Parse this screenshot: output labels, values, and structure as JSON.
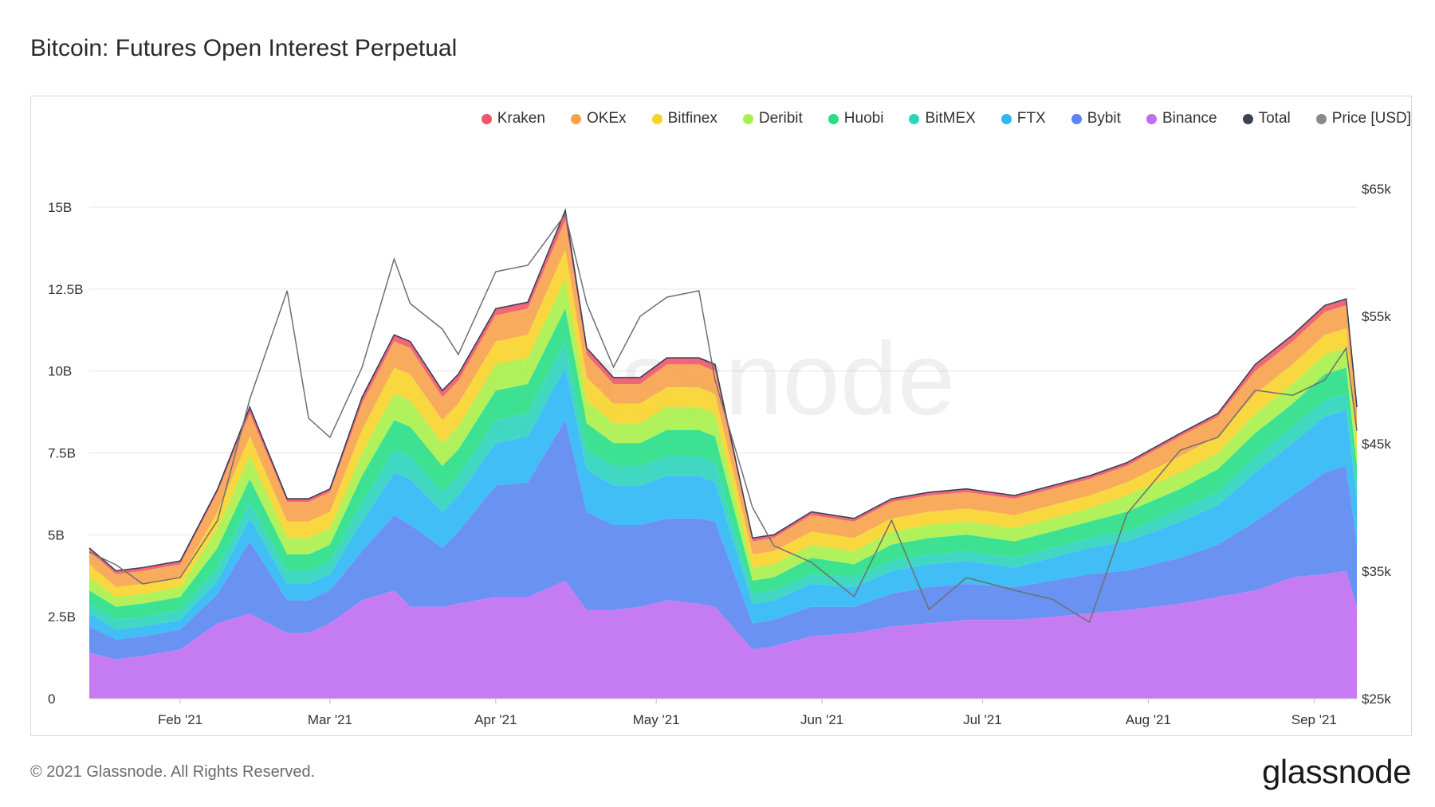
{
  "page": {
    "title": "Bitcoin: Futures Open Interest Perpetual",
    "copyright": "© 2021 Glassnode. All Rights Reserved.",
    "brand": "glassnode",
    "watermark": "glassnode"
  },
  "legend": [
    {
      "label": "Kraken",
      "color": "#f0566a"
    },
    {
      "label": "OKEx",
      "color": "#f7a24b"
    },
    {
      "label": "Bitfinex",
      "color": "#f7d32a"
    },
    {
      "label": "Deribit",
      "color": "#a7ef4a"
    },
    {
      "label": "Huobi",
      "color": "#27de86"
    },
    {
      "label": "BitMEX",
      "color": "#2bd4bd"
    },
    {
      "label": "FTX",
      "color": "#2cb7f5"
    },
    {
      "label": "Bybit",
      "color": "#5a86f2"
    },
    {
      "label": "Binance",
      "color": "#bf6ef2"
    },
    {
      "label": "Total",
      "color": "#3b4252"
    },
    {
      "label": "Price [USD]",
      "color": "#8a8a8a"
    }
  ],
  "chart_data": {
    "type": "area",
    "stacked": true,
    "title": "Bitcoin: Futures Open Interest Perpetual",
    "x_tick_labels": [
      "Feb '21",
      "Mar '21",
      "Apr '21",
      "May '21",
      "Jun '21",
      "Jul '21",
      "Aug '21",
      "Sep '21"
    ],
    "y_left_tick_labels": [
      "0",
      "2.5B",
      "5B",
      "7.5B",
      "10B",
      "12.5B",
      "15B"
    ],
    "y_left_range": [
      0,
      15.5
    ],
    "y_left_unit": "B USD",
    "y_right_tick_labels": [
      "$25k",
      "$35k",
      "$45k",
      "$55k",
      "$65k"
    ],
    "y_right_range": [
      25000,
      65000
    ],
    "grid": "horizontal",
    "legend_position": "top-right",
    "x": [
      "2021-01-15",
      "2021-01-20",
      "2021-01-25",
      "2021-02-01",
      "2021-02-08",
      "2021-02-14",
      "2021-02-21",
      "2021-02-25",
      "2021-03-01",
      "2021-03-07",
      "2021-03-13",
      "2021-03-16",
      "2021-03-22",
      "2021-03-25",
      "2021-04-01",
      "2021-04-07",
      "2021-04-14",
      "2021-04-18",
      "2021-04-23",
      "2021-04-28",
      "2021-05-03",
      "2021-05-09",
      "2021-05-12",
      "2021-05-19",
      "2021-05-23",
      "2021-05-30",
      "2021-06-07",
      "2021-06-14",
      "2021-06-21",
      "2021-06-28",
      "2021-07-07",
      "2021-07-14",
      "2021-07-21",
      "2021-07-28",
      "2021-08-07",
      "2021-08-14",
      "2021-08-21",
      "2021-08-28",
      "2021-09-03",
      "2021-09-07",
      "2021-09-09"
    ],
    "series": [
      {
        "name": "Binance",
        "values": [
          1.4,
          1.2,
          1.3,
          1.5,
          2.3,
          2.6,
          2.0,
          2.0,
          2.3,
          3.0,
          3.3,
          2.8,
          2.8,
          2.9,
          3.1,
          3.1,
          3.6,
          2.7,
          2.7,
          2.8,
          3.0,
          2.9,
          2.8,
          1.5,
          1.6,
          1.9,
          2.0,
          2.2,
          2.3,
          2.4,
          2.4,
          2.5,
          2.6,
          2.7,
          2.9,
          3.1,
          3.3,
          3.7,
          3.8,
          3.9,
          2.8
        ]
      },
      {
        "name": "Bybit",
        "values": [
          0.8,
          0.6,
          0.6,
          0.6,
          0.9,
          2.2,
          1.0,
          1.0,
          1.0,
          1.5,
          2.3,
          2.5,
          1.8,
          2.2,
          3.4,
          3.5,
          4.9,
          3.0,
          2.6,
          2.5,
          2.5,
          2.6,
          2.6,
          0.8,
          0.8,
          0.9,
          0.8,
          1.0,
          1.1,
          1.1,
          1.0,
          1.1,
          1.2,
          1.2,
          1.4,
          1.6,
          2.1,
          2.5,
          3.1,
          3.2,
          1.9
        ]
      },
      {
        "name": "FTX",
        "values": [
          0.4,
          0.3,
          0.3,
          0.3,
          0.4,
          0.7,
          0.5,
          0.5,
          0.5,
          0.9,
          1.3,
          1.4,
          1.1,
          1.1,
          1.3,
          1.4,
          1.6,
          1.3,
          1.2,
          1.2,
          1.3,
          1.3,
          1.2,
          0.6,
          0.6,
          0.7,
          0.6,
          0.7,
          0.7,
          0.7,
          0.6,
          0.7,
          0.8,
          0.9,
          1.1,
          1.2,
          1.5,
          1.6,
          1.7,
          1.7,
          1.4
        ]
      },
      {
        "name": "BitMEX",
        "values": [
          0.3,
          0.3,
          0.3,
          0.3,
          0.4,
          0.5,
          0.4,
          0.4,
          0.4,
          0.6,
          0.7,
          0.7,
          0.6,
          0.6,
          0.7,
          0.7,
          0.8,
          0.6,
          0.6,
          0.6,
          0.6,
          0.6,
          0.6,
          0.3,
          0.3,
          0.3,
          0.3,
          0.3,
          0.3,
          0.3,
          0.3,
          0.3,
          0.3,
          0.3,
          0.4,
          0.4,
          0.5,
          0.5,
          0.5,
          0.5,
          0.4
        ]
      },
      {
        "name": "Huobi",
        "values": [
          0.4,
          0.4,
          0.4,
          0.4,
          0.6,
          0.7,
          0.5,
          0.5,
          0.5,
          0.8,
          0.9,
          0.9,
          0.8,
          0.8,
          0.9,
          0.9,
          1.0,
          0.8,
          0.7,
          0.7,
          0.8,
          0.8,
          0.8,
          0.4,
          0.4,
          0.5,
          0.4,
          0.5,
          0.5,
          0.5,
          0.5,
          0.5,
          0.5,
          0.6,
          0.6,
          0.7,
          0.7,
          0.7,
          0.8,
          0.8,
          0.6
        ]
      },
      {
        "name": "Deribit",
        "values": [
          0.4,
          0.3,
          0.3,
          0.3,
          0.6,
          0.7,
          0.5,
          0.5,
          0.5,
          0.7,
          0.8,
          0.8,
          0.7,
          0.7,
          0.8,
          0.8,
          0.9,
          0.7,
          0.6,
          0.6,
          0.7,
          0.7,
          0.7,
          0.4,
          0.4,
          0.4,
          0.4,
          0.4,
          0.4,
          0.4,
          0.4,
          0.4,
          0.4,
          0.5,
          0.5,
          0.5,
          0.6,
          0.6,
          0.6,
          0.6,
          0.5
        ]
      },
      {
        "name": "Bitfinex",
        "values": [
          0.4,
          0.3,
          0.3,
          0.3,
          0.5,
          0.6,
          0.5,
          0.5,
          0.5,
          0.7,
          0.8,
          0.8,
          0.7,
          0.7,
          0.7,
          0.7,
          0.9,
          0.7,
          0.6,
          0.6,
          0.6,
          0.6,
          0.6,
          0.4,
          0.4,
          0.4,
          0.4,
          0.4,
          0.4,
          0.4,
          0.4,
          0.4,
          0.4,
          0.4,
          0.5,
          0.5,
          0.6,
          0.6,
          0.6,
          0.6,
          0.5
        ]
      },
      {
        "name": "OKEx",
        "values": [
          0.4,
          0.4,
          0.4,
          0.4,
          0.6,
          0.7,
          0.6,
          0.6,
          0.6,
          0.8,
          0.8,
          0.8,
          0.7,
          0.7,
          0.8,
          0.8,
          0.9,
          0.7,
          0.6,
          0.6,
          0.7,
          0.7,
          0.7,
          0.4,
          0.4,
          0.5,
          0.5,
          0.5,
          0.5,
          0.5,
          0.5,
          0.5,
          0.5,
          0.5,
          0.6,
          0.6,
          0.7,
          0.7,
          0.7,
          0.7,
          0.6
        ]
      },
      {
        "name": "Kraken",
        "values": [
          0.1,
          0.1,
          0.1,
          0.1,
          0.1,
          0.2,
          0.1,
          0.1,
          0.1,
          0.2,
          0.2,
          0.2,
          0.2,
          0.2,
          0.2,
          0.2,
          0.3,
          0.2,
          0.2,
          0.2,
          0.2,
          0.2,
          0.2,
          0.1,
          0.1,
          0.1,
          0.1,
          0.1,
          0.1,
          0.1,
          0.1,
          0.1,
          0.1,
          0.1,
          0.1,
          0.1,
          0.2,
          0.2,
          0.2,
          0.2,
          0.2
        ]
      }
    ],
    "price_usd": [
      36500,
      35500,
      34000,
      34500,
      39000,
      48500,
      57000,
      47000,
      45500,
      51000,
      59500,
      56000,
      54000,
      52000,
      58500,
      59000,
      63000,
      56000,
      51000,
      55000,
      56500,
      57000,
      50000,
      40000,
      37000,
      35700,
      33000,
      39000,
      32000,
      34500,
      33500,
      32800,
      31000,
      39500,
      44500,
      45500,
      49200,
      48800,
      50000,
      52500,
      46000
    ]
  }
}
